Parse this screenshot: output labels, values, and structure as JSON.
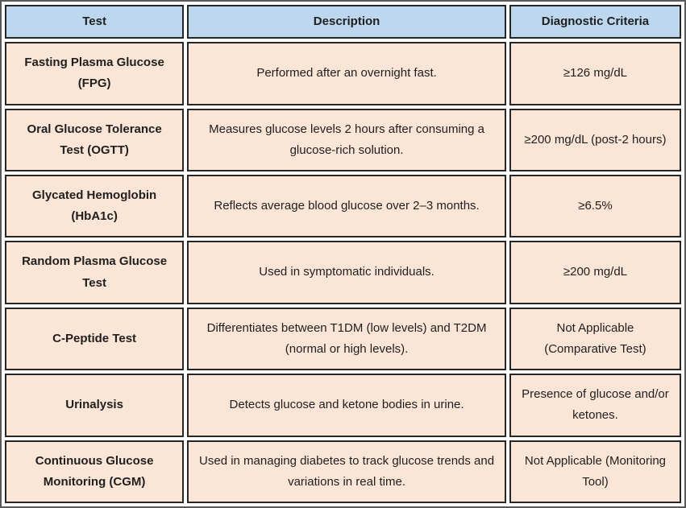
{
  "table": {
    "columns": [
      {
        "label": "Test"
      },
      {
        "label": "Description"
      },
      {
        "label": "Diagnostic Criteria"
      }
    ],
    "rows": [
      {
        "test": "Fasting Plasma Glucose (FPG)",
        "description": "Performed after an overnight fast.",
        "criteria": "≥126 mg/dL"
      },
      {
        "test": "Oral Glucose Tolerance Test (OGTT)",
        "description": "Measures glucose levels 2 hours after consuming a glucose-rich solution.",
        "criteria": "≥200 mg/dL (post-2 hours)"
      },
      {
        "test": "Glycated Hemoglobin (HbA1c)",
        "description": "Reflects average blood glucose over 2–3 months.",
        "criteria": "≥6.5%"
      },
      {
        "test": "Random Plasma Glucose Test",
        "description": "Used in symptomatic individuals.",
        "criteria": "≥200 mg/dL"
      },
      {
        "test": "C-Peptide Test",
        "description": "Differentiates between T1DM (low levels) and T2DM (normal or high levels).",
        "criteria": "Not Applicable (Comparative Test)"
      },
      {
        "test": "Urinalysis",
        "description": "Detects glucose and ketone bodies in urine.",
        "criteria": "Presence of glucose and/or ketones."
      },
      {
        "test": "Continuous Glucose Monitoring (CGM)",
        "description": "Used in managing diabetes to track glucose trends and variations in real time.",
        "criteria": "Not Applicable (Monitoring Tool)"
      }
    ]
  },
  "colors": {
    "header_bg": "#bdd7ee",
    "row_bg": "#fbe5d6",
    "border": "#262626",
    "text": "#1f1f1f"
  }
}
